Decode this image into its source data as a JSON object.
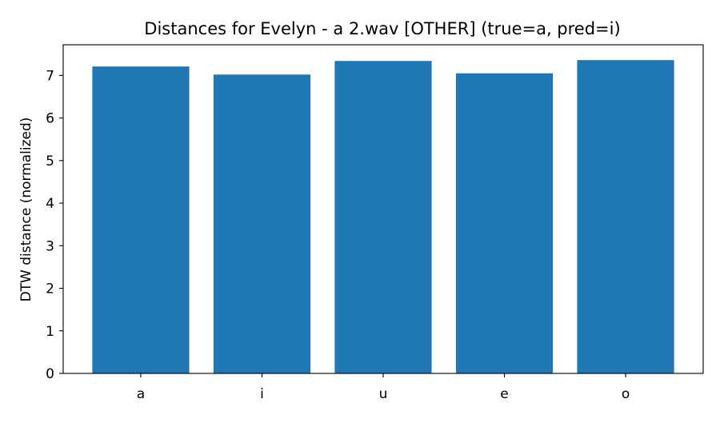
{
  "chart_data": {
    "type": "bar",
    "title": "Distances for Evelyn - a 2.wav [OTHER] (true=a, pred=i)",
    "xlabel": "",
    "ylabel": "DTW distance (normalized)",
    "categories": [
      "a",
      "i",
      "u",
      "e",
      "o"
    ],
    "values": [
      7.21,
      7.02,
      7.34,
      7.05,
      7.36
    ],
    "ylim": [
      0,
      7.72
    ],
    "yticks": [
      0,
      1,
      2,
      3,
      4,
      5,
      6,
      7
    ],
    "grid": false,
    "legend": "none",
    "bar_color": "#1f77b4"
  }
}
